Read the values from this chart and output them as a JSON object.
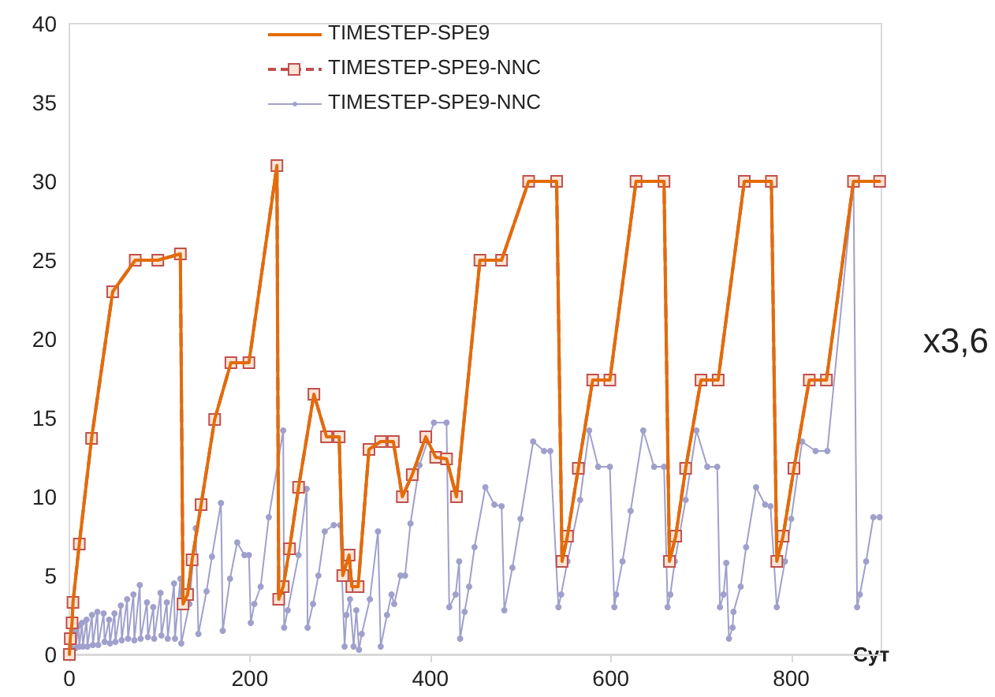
{
  "chart_data": {
    "type": "line",
    "xlabel": "Сут",
    "annotations": [
      "x3,6"
    ],
    "legend": "top",
    "grid": false,
    "xlim": [
      0,
      900
    ],
    "xticks": [
      0,
      200,
      400,
      600,
      800
    ],
    "ylim": [
      0,
      40
    ],
    "yticks": [
      0,
      5,
      10,
      15,
      20,
      25,
      30,
      35,
      40
    ],
    "x": [
      0,
      1,
      3,
      4,
      11,
      24.6,
      48,
      73,
      98,
      123,
      126,
      131,
      136,
      146,
      161,
      179,
      199,
      230,
      232,
      237,
      244,
      254,
      271,
      285,
      299,
      303,
      310,
      313,
      320,
      332,
      345,
      359,
      369,
      380,
      395,
      406,
      418,
      429,
      455,
      479,
      509,
      540,
      546,
      552,
      564,
      580,
      599,
      628,
      659,
      665,
      672,
      683,
      700,
      719,
      748,
      778,
      784,
      791,
      803,
      820,
      839,
      869,
      898
    ],
    "series": [
      {
        "name": "TIMESTEP-SPE9",
        "color": "#e36c09",
        "line_style": "solid",
        "marker": "none",
        "values": [
          0,
          1,
          2,
          3.3,
          7,
          13.7,
          23,
          25,
          25,
          25.4,
          3.2,
          3.8,
          6,
          9.5,
          14.9,
          18.5,
          18.5,
          31,
          3.5,
          4.3,
          6.7,
          10.6,
          16.5,
          13.8,
          13.8,
          5,
          6.3,
          4.3,
          4.3,
          13,
          13.5,
          13.5,
          10,
          11.4,
          13.8,
          12.5,
          12.4,
          10,
          25,
          25,
          30,
          30,
          5.9,
          7.5,
          11.8,
          17.4,
          17.4,
          30,
          30,
          5.9,
          7.5,
          11.8,
          17.4,
          17.4,
          30,
          30,
          5.9,
          7.5,
          11.8,
          17.4,
          17.4,
          30,
          30
        ]
      },
      {
        "name": "TIMESTEP-SPE9-NNC",
        "color": "#c0504d",
        "line_style": "dashed",
        "marker": "square",
        "values": [
          0,
          1,
          2,
          3.3,
          7,
          13.7,
          23,
          25,
          25,
          25.4,
          3.2,
          3.8,
          6,
          9.5,
          14.9,
          18.5,
          18.5,
          31,
          3.5,
          4.3,
          6.7,
          10.6,
          16.5,
          13.8,
          13.8,
          5,
          6.3,
          4.3,
          4.3,
          13,
          13.5,
          13.5,
          10,
          11.4,
          13.8,
          12.5,
          12.4,
          10,
          25,
          25,
          30,
          30,
          5.9,
          7.5,
          11.8,
          17.4,
          17.4,
          30,
          30,
          5.9,
          7.5,
          11.8,
          17.4,
          17.4,
          30,
          30,
          5.9,
          7.5,
          11.8,
          17.4,
          17.4,
          30,
          30
        ]
      },
      {
        "name": "TIMESTEP-SPE9-NNC",
        "color": "#a0a0cc",
        "line_style": "solid",
        "marker": "circle",
        "x": [
          0,
          2,
          3,
          6,
          7,
          10,
          11,
          14,
          15,
          19,
          20,
          25,
          26,
          31,
          32,
          38,
          39,
          44,
          45,
          50,
          51,
          57,
          58,
          64,
          65,
          71,
          72,
          78,
          79,
          86,
          87,
          93,
          94,
          101,
          102,
          108,
          109,
          116,
          117,
          123,
          124,
          133,
          140,
          143,
          152,
          158,
          168,
          170,
          178,
          186,
          194,
          199,
          201,
          205,
          212,
          221,
          237,
          238,
          242,
          254,
          263,
          264,
          270,
          276,
          283,
          293,
          300,
          305,
          307,
          311,
          315,
          318,
          321,
          324,
          333,
          342,
          345,
          352,
          357,
          360,
          367,
          372,
          378,
          388,
          404,
          418,
          421,
          428,
          432,
          433,
          438,
          443,
          449,
          461,
          471,
          479,
          482,
          491,
          500,
          514,
          526,
          533,
          542,
          545,
          552,
          566,
          576,
          586,
          599,
          604,
          606,
          613,
          622,
          636,
          648,
          659,
          663,
          666,
          671,
          683,
          695,
          707,
          718,
          721,
          725,
          728,
          731,
          735,
          736,
          744,
          750,
          761,
          771,
          777,
          784,
          793,
          800,
          812,
          827,
          840,
          869,
          873,
          876,
          883,
          891,
          898
        ],
        "values": [
          0,
          1,
          0.3,
          1.5,
          0.4,
          1.8,
          0.5,
          2,
          0.5,
          2.2,
          0.5,
          2.5,
          0.6,
          2.7,
          0.6,
          2.6,
          0.8,
          2.2,
          0.7,
          2.6,
          0.8,
          3.1,
          0.9,
          3.5,
          1,
          3.8,
          0.9,
          4.4,
          1,
          3.3,
          1.1,
          3,
          1,
          3.9,
          1.2,
          3.3,
          1,
          4.5,
          1,
          4.8,
          0.7,
          3.2,
          8,
          1.3,
          4,
          6.2,
          9.6,
          1.5,
          4.8,
          7.1,
          6.3,
          6.3,
          2,
          3.2,
          4.3,
          8.7,
          14.2,
          1.7,
          2.8,
          6.3,
          10.5,
          1.7,
          3.2,
          5,
          7.8,
          8.2,
          8.2,
          0.5,
          2.5,
          3.5,
          0.5,
          2.8,
          0.3,
          1.3,
          3.5,
          7.8,
          0.5,
          2.5,
          3.8,
          3.2,
          5,
          5,
          8.3,
          12,
          14.7,
          14.7,
          3,
          3.8,
          5.9,
          1,
          2.7,
          4.3,
          6.8,
          10.6,
          9.5,
          9.4,
          2.8,
          5.5,
          8.6,
          13.5,
          12.9,
          12.9,
          3,
          3.8,
          5.9,
          9.8,
          14.2,
          11.9,
          11.9,
          3,
          3.8,
          5.9,
          9.1,
          14.2,
          11.9,
          11.9,
          3,
          3.8,
          5.9,
          9.8,
          14.2,
          11.9,
          11.9,
          3,
          3.8,
          5.8,
          1,
          1.7,
          2.7,
          4.3,
          6.8,
          10.6,
          9.5,
          9.4,
          3,
          5.9,
          8.6,
          13.5,
          12.9,
          12.9,
          30,
          3,
          3.8,
          5.9,
          8.7,
          8.7
        ]
      }
    ]
  }
}
